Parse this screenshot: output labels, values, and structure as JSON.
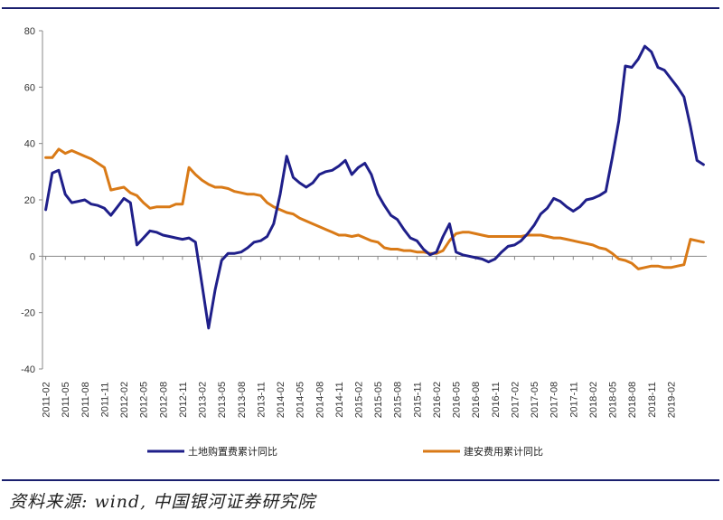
{
  "chart_data": {
    "type": "line",
    "title": "",
    "xlabel": "",
    "ylabel": "",
    "ylim": [
      -40,
      80
    ],
    "yticks": [
      -40,
      -20,
      0,
      20,
      40,
      60,
      80
    ],
    "grid": false,
    "legend_position": "bottom",
    "x_tick_labels": [
      "2011-02",
      "2011-05",
      "2011-08",
      "2011-11",
      "2012-02",
      "2012-05",
      "2012-08",
      "2012-11",
      "2013-02",
      "2013-05",
      "2013-08",
      "2013-11",
      "2014-02",
      "2014-05",
      "2014-08",
      "2014-11",
      "2015-02",
      "2015-05",
      "2015-08",
      "2015-11",
      "2016-02",
      "2016-05",
      "2016-08",
      "2016-11",
      "2017-02",
      "2017-05",
      "2017-08",
      "2017-11",
      "2018-02",
      "2018-05",
      "2018-08",
      "2018-11",
      "2019-02"
    ],
    "x_start": "2011-02",
    "x_end": "2019-03",
    "series": [
      {
        "name": "土地购置费累计同比",
        "color": "#1f1f8a",
        "values": [
          16.5,
          29.5,
          30.5,
          22,
          19,
          19.5,
          20,
          18.5,
          18,
          17,
          14.5,
          17.5,
          20.5,
          19,
          4,
          6.5,
          9,
          8.5,
          7.5,
          7,
          6.5,
          6,
          6.5,
          5,
          -10,
          -25.5,
          -12,
          -1.5,
          1,
          1,
          1.5,
          3,
          5,
          5.5,
          7,
          11.5,
          22,
          35.5,
          28,
          26,
          24.5,
          26,
          29,
          30,
          30.5,
          32,
          34,
          29,
          31.5,
          33,
          29,
          22,
          18,
          14.5,
          13,
          9.5,
          6.5,
          5.5,
          2.5,
          0.5,
          1.5,
          7,
          11.5,
          1.5,
          0.5,
          0,
          -0.5,
          -1,
          -2,
          -1,
          1.5,
          3.5,
          4,
          5.5,
          8,
          11,
          15,
          17,
          20.5,
          19.5,
          17.5,
          16,
          17.5,
          20,
          20.5,
          21.5,
          23,
          35,
          48,
          67.5,
          67,
          70,
          74.5,
          72.5,
          67,
          66,
          63,
          60,
          56.5,
          46,
          34,
          32.5
        ]
      },
      {
        "name": "建安费用累计同比",
        "color": "#d97a17",
        "values": [
          35,
          35,
          38,
          36.5,
          37.5,
          36.5,
          35.5,
          34.5,
          33,
          31.5,
          23.5,
          24,
          24.5,
          22.5,
          21.5,
          19,
          17,
          17.5,
          17.5,
          17.5,
          18.5,
          18.5,
          31.5,
          29,
          27,
          25.5,
          24.5,
          24.5,
          24,
          23,
          22.5,
          22,
          22,
          21.5,
          19,
          17.5,
          16.5,
          15.5,
          15,
          13.5,
          12.5,
          11.5,
          10.5,
          9.5,
          8.5,
          7.5,
          7.5,
          7,
          7.5,
          6.5,
          5.5,
          5,
          3,
          2.5,
          2.5,
          2,
          2,
          1.5,
          1.5,
          1,
          1,
          2,
          5.5,
          8,
          8.5,
          8.5,
          8,
          7.5,
          7,
          7,
          7,
          7,
          7,
          7,
          7.5,
          7.5,
          7.5,
          7,
          6.5,
          6.5,
          6,
          5.5,
          5,
          4.5,
          4,
          3,
          2.5,
          1,
          -1,
          -1.5,
          -2.5,
          -4.5,
          -4,
          -3.5,
          -3.5,
          -4,
          -4,
          -3.5,
          -3,
          6,
          5.5,
          5
        ]
      }
    ]
  },
  "source_text": "资料来源: wind, 中国银河证券研究院"
}
